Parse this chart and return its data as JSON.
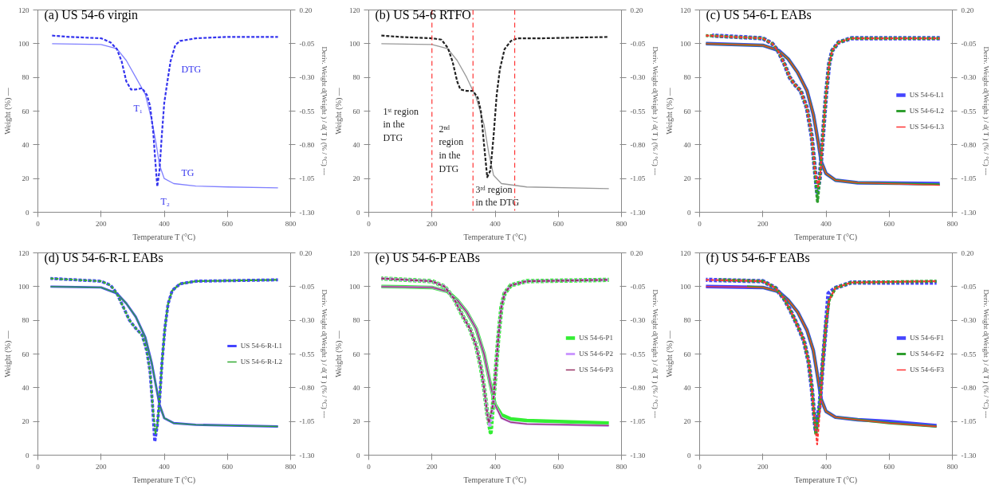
{
  "chart_data": [
    {
      "type": "line",
      "title": "(a) US 54-6 virgin",
      "xlabel": "Temperature T (°C)",
      "ylabel": "Weight (%) —",
      "y2label": "Deriv. Weight d(Weight ) / d( T ) (% / °C) ---",
      "xlim": [
        0,
        800
      ],
      "xticks": [
        0,
        200,
        400,
        600,
        800
      ],
      "ylim": [
        0,
        120
      ],
      "yticks": [
        0,
        20,
        40,
        60,
        80,
        100,
        120
      ],
      "y2lim": [
        -1.3,
        0.2
      ],
      "y2ticks": [
        {
          "value": -1.3,
          "label": "-1.30"
        },
        {
          "value": -1.05,
          "label": "-1.05"
        },
        {
          "value": -0.8,
          "label": "-0.80"
        },
        {
          "value": -0.55,
          "label": "-0.55"
        },
        {
          "value": -0.3,
          "label": "-0.30"
        },
        {
          "value": -0.05,
          "label": "-0.05"
        },
        {
          "value": 0.2,
          "label": "0.20"
        }
      ],
      "grid": false,
      "legend": false,
      "annotations": [
        "T₁",
        "T₂",
        "DTG",
        "TG"
      ],
      "series": [
        {
          "color": "#8080ff",
          "line_style": "solid",
          "x": [
            45,
            200,
            250,
            280,
            310,
            340,
            360,
            375,
            385,
            400,
            430,
            500,
            600,
            760
          ],
          "values": [
            100,
            99.5,
            97,
            90,
            80,
            70,
            55,
            40,
            28,
            20,
            17,
            15.5,
            15,
            14.5
          ]
        },
        {
          "color": "#3333ee",
          "line_style": "dotted",
          "axis": "y2",
          "x": [
            45,
            100,
            200,
            230,
            250,
            265,
            280,
            295,
            310,
            330,
            345,
            355,
            365,
            372,
            378,
            385,
            392,
            400,
            410,
            420,
            435,
            450,
            500,
            600,
            760
          ],
          "values": [
            0.01,
            0.0,
            -0.01,
            -0.04,
            -0.09,
            -0.18,
            -0.33,
            -0.39,
            -0.39,
            -0.38,
            -0.43,
            -0.51,
            -0.7,
            -0.93,
            -1.11,
            -0.99,
            -0.74,
            -0.49,
            -0.33,
            -0.18,
            -0.06,
            -0.03,
            -0.01,
            0.0,
            0.0
          ]
        }
      ]
    },
    {
      "type": "line",
      "title": "(b) US 54-6 RTFO",
      "xlabel": "Temperature T (°C)",
      "ylabel": "Weight (%) —",
      "y2label": "Deriv. Weight d(Weight ) / d( T ) (% / °C) ---",
      "xlim": [
        0,
        800
      ],
      "xticks": [
        0,
        200,
        400,
        600,
        800
      ],
      "ylim": [
        0,
        120
      ],
      "yticks": [
        0,
        20,
        40,
        60,
        80,
        100,
        120
      ],
      "y2lim": [
        -1.3,
        0.2
      ],
      "y2ticks": [
        {
          "value": -1.3,
          "label": "-1.30"
        },
        {
          "value": -1.05,
          "label": "-1.05"
        },
        {
          "value": -0.8,
          "label": "-0.80"
        },
        {
          "value": -0.55,
          "label": "-0.55"
        },
        {
          "value": -0.3,
          "label": "-0.30"
        },
        {
          "value": -0.05,
          "label": "-0.05"
        },
        {
          "value": 0.2,
          "label": "0.20"
        }
      ],
      "grid": false,
      "legend": false,
      "ref_lines": [
        {
          "axis": "x",
          "value": 200,
          "color": "#ff3333",
          "line_style": "dashed"
        },
        {
          "axis": "x",
          "value": 330,
          "color": "#ff3333",
          "line_style": "dashed"
        },
        {
          "axis": "x",
          "value": 462,
          "color": "#ff3333",
          "line_style": "dashed"
        }
      ],
      "annotations": [
        "1ˢᵗ region\nin the\nDTG",
        "2ⁿᵈ\nregion\nin the\nDTG",
        "3ʳᵈ region\nin the DTG"
      ],
      "series": [
        {
          "color": "#999999",
          "line_style": "solid",
          "x": [
            40,
            200,
            250,
            280,
            310,
            340,
            365,
            380,
            395,
            420,
            500,
            760
          ],
          "values": [
            100,
            99.5,
            97,
            90,
            80,
            68,
            52,
            35,
            22,
            17,
            15,
            14
          ]
        },
        {
          "color": "#222222",
          "line_style": "dotted",
          "axis": "y2",
          "x": [
            40,
            100,
            200,
            230,
            250,
            265,
            280,
            290,
            310,
            330,
            345,
            355,
            365,
            375,
            385,
            395,
            405,
            415,
            430,
            450,
            470,
            550,
            760
          ],
          "values": [
            0.01,
            0.0,
            -0.01,
            -0.02,
            -0.08,
            -0.18,
            -0.33,
            -0.39,
            -0.4,
            -0.4,
            -0.45,
            -0.55,
            -0.8,
            -1.04,
            -0.99,
            -0.74,
            -0.43,
            -0.24,
            -0.09,
            -0.03,
            -0.01,
            -0.01,
            0.0
          ]
        }
      ]
    },
    {
      "type": "line",
      "title": "(c) US 54-6-L EABs",
      "xlabel": "Temperature T (°C)",
      "ylabel": "Weight (%) —",
      "y2label": "Deriv. Weight d(Weight ) / d( T ) (% / °C) ---",
      "xlim": [
        0,
        800
      ],
      "xticks": [
        0,
        200,
        400,
        600,
        800
      ],
      "ylim": [
        0,
        120
      ],
      "yticks": [
        0,
        20,
        40,
        60,
        80,
        100,
        120
      ],
      "y2lim": [
        -1.3,
        0.2
      ],
      "y2ticks": [
        {
          "value": -1.3,
          "label": "-1.30"
        },
        {
          "value": -1.05,
          "label": "-1.05"
        },
        {
          "value": -0.8,
          "label": "-0.80"
        },
        {
          "value": -0.55,
          "label": "-0.55"
        },
        {
          "value": -0.3,
          "label": "-0.30"
        },
        {
          "value": -0.05,
          "label": "-0.05"
        },
        {
          "value": 0.2,
          "label": "0.20"
        }
      ],
      "grid": false,
      "legend": "right",
      "series": [
        {
          "name": "US 54-6-L1",
          "color": "#4444ff",
          "line_style": "solid",
          "x": [
            20,
            200,
            250,
            280,
            310,
            340,
            360,
            375,
            385,
            400,
            430,
            500,
            760
          ],
          "values": [
            100,
            99,
            96,
            91,
            83,
            72,
            58,
            42,
            30,
            23,
            19,
            17.5,
            17
          ]
        },
        {
          "name": "US 54-6-L2",
          "color": "#2e9e2e",
          "line_style": "solid",
          "x": [
            20,
            200,
            250,
            280,
            310,
            340,
            360,
            375,
            385,
            400,
            430,
            500,
            760
          ],
          "values": [
            100,
            99,
            96,
            91,
            83,
            72,
            58,
            42,
            30,
            23,
            19,
            17.5,
            16.5
          ]
        },
        {
          "name": "US 54-6-L3",
          "color": "#ff3333",
          "line_style": "solid",
          "x": [
            20,
            200,
            250,
            280,
            310,
            340,
            360,
            375,
            385,
            400,
            430,
            500,
            760
          ],
          "values": [
            100,
            99,
            96,
            91,
            83,
            72,
            58,
            42,
            30,
            23,
            19,
            17.5,
            16
          ]
        },
        {
          "color": "#4444ff",
          "line_style": "dotted",
          "axis": "y2",
          "x": [
            40,
            200,
            230,
            250,
            270,
            285,
            300,
            320,
            340,
            355,
            365,
            372,
            380,
            390,
            400,
            410,
            420,
            440,
            480,
            760
          ],
          "values": [
            0.01,
            -0.01,
            -0.05,
            -0.11,
            -0.21,
            -0.3,
            -0.35,
            -0.4,
            -0.53,
            -0.74,
            -0.99,
            -1.15,
            -1.05,
            -0.74,
            -0.43,
            -0.2,
            -0.1,
            -0.04,
            -0.01,
            -0.01
          ]
        },
        {
          "color": "#2e9e2e",
          "line_style": "dotted",
          "axis": "y2",
          "x": [
            20,
            200,
            230,
            250,
            270,
            285,
            300,
            320,
            340,
            355,
            365,
            373,
            380,
            390,
            400,
            410,
            420,
            440,
            480,
            760
          ],
          "values": [
            0.01,
            -0.01,
            -0.05,
            -0.11,
            -0.21,
            -0.3,
            -0.35,
            -0.4,
            -0.53,
            -0.74,
            -0.99,
            -1.22,
            -1.05,
            -0.74,
            -0.43,
            -0.2,
            -0.1,
            -0.04,
            -0.01,
            -0.01
          ]
        },
        {
          "color": "#ff3333",
          "line_style": "dotted",
          "axis": "y2",
          "x": [
            20,
            200,
            230,
            250,
            270,
            285,
            300,
            320,
            340,
            355,
            365,
            375,
            382,
            390,
            400,
            410,
            420,
            440,
            480,
            760
          ],
          "values": [
            0.01,
            -0.01,
            -0.05,
            -0.11,
            -0.21,
            -0.3,
            -0.35,
            -0.4,
            -0.53,
            -0.74,
            -0.99,
            -1.11,
            -1.02,
            -0.74,
            -0.43,
            -0.2,
            -0.1,
            -0.04,
            -0.01,
            -0.01
          ]
        }
      ]
    },
    {
      "type": "line",
      "title": "(d) US 54-6-R-L EABs",
      "xlabel": "Temperature T (°C)",
      "ylabel": "Weight (%) —",
      "y2label": "Deriv. Weight d(Weight ) / d( T ) (% / °C) ---",
      "xlim": [
        0,
        800
      ],
      "xticks": [
        0,
        200,
        400,
        600,
        800
      ],
      "ylim": [
        0,
        120
      ],
      "yticks": [
        0,
        20,
        40,
        60,
        80,
        100,
        120
      ],
      "y2lim": [
        -1.3,
        0.2
      ],
      "y2ticks": [
        {
          "value": -1.3,
          "label": "-1.30"
        },
        {
          "value": -1.05,
          "label": "-1.05"
        },
        {
          "value": -0.8,
          "label": "-0.80"
        },
        {
          "value": -0.55,
          "label": "-0.55"
        },
        {
          "value": -0.3,
          "label": "-0.30"
        },
        {
          "value": -0.05,
          "label": "-0.05"
        },
        {
          "value": 0.2,
          "label": "0.20"
        }
      ],
      "grid": false,
      "legend": "right",
      "series": [
        {
          "name": "US 54-6-R-L1",
          "color": "#4444ff",
          "line_style": "solid",
          "x": [
            40,
            200,
            250,
            280,
            310,
            340,
            360,
            375,
            385,
            400,
            430,
            500,
            760
          ],
          "values": [
            100,
            99.5,
            96,
            90,
            82,
            70,
            55,
            40,
            30,
            22,
            19,
            18,
            17
          ]
        },
        {
          "name": "US 54-6-R-L2",
          "color": "#33aa33",
          "line_style": "solid",
          "x": [
            40,
            200,
            250,
            280,
            310,
            340,
            360,
            375,
            385,
            400,
            430,
            500,
            760
          ],
          "values": [
            100,
            99.5,
            96,
            90,
            82,
            70,
            55,
            40,
            30,
            22,
            19,
            18,
            17
          ]
        },
        {
          "color": "#4444ff",
          "line_style": "dotted",
          "axis": "y2",
          "x": [
            40,
            200,
            230,
            250,
            270,
            290,
            310,
            330,
            345,
            355,
            363,
            370,
            378,
            385,
            393,
            402,
            412,
            425,
            450,
            500,
            760
          ],
          "values": [
            0.01,
            -0.01,
            -0.04,
            -0.1,
            -0.2,
            -0.3,
            -0.36,
            -0.41,
            -0.53,
            -0.68,
            -0.93,
            -1.2,
            -1.08,
            -0.9,
            -0.61,
            -0.36,
            -0.18,
            -0.08,
            -0.03,
            -0.01,
            0.0
          ]
        },
        {
          "color": "#33aa33",
          "line_style": "dotted",
          "axis": "y2",
          "x": [
            40,
            200,
            230,
            250,
            270,
            290,
            310,
            330,
            345,
            355,
            363,
            372,
            378,
            385,
            393,
            402,
            412,
            425,
            450,
            500,
            760
          ],
          "values": [
            0.01,
            -0.01,
            -0.04,
            -0.1,
            -0.2,
            -0.3,
            -0.36,
            -0.41,
            -0.53,
            -0.68,
            -0.93,
            -1.14,
            -1.08,
            -0.9,
            -0.61,
            -0.36,
            -0.18,
            -0.08,
            -0.03,
            -0.01,
            0.0
          ]
        }
      ]
    },
    {
      "type": "line",
      "title": "(e) US 54-6-P EABs",
      "xlabel": "Temperature T (°C)",
      "ylabel": "Weight (%) —",
      "y2label": "Deriv. Weight d(Weight ) / d( T ) (% / °C) ---",
      "xlim": [
        0,
        800
      ],
      "xticks": [
        0,
        200,
        400,
        600,
        800
      ],
      "ylim": [
        0,
        120
      ],
      "yticks": [
        0,
        20,
        40,
        60,
        80,
        100,
        120
      ],
      "y2lim": [
        -1.3,
        0.2
      ],
      "y2ticks": [
        {
          "value": -1.3,
          "label": "-1.30"
        },
        {
          "value": -1.05,
          "label": "-1.05"
        },
        {
          "value": -0.8,
          "label": "-0.80"
        },
        {
          "value": -0.55,
          "label": "-0.55"
        },
        {
          "value": -0.3,
          "label": "-0.30"
        },
        {
          "value": -0.05,
          "label": "-0.05"
        },
        {
          "value": 0.2,
          "label": "0.20"
        }
      ],
      "grid": false,
      "legend": "right",
      "series": [
        {
          "name": "US 54-6-P1",
          "color": "#33ee33",
          "line_style": "solid",
          "x": [
            40,
            200,
            250,
            280,
            310,
            340,
            365,
            385,
            400,
            420,
            450,
            500,
            760
          ],
          "values": [
            100,
            99.5,
            97,
            92,
            85,
            75,
            60,
            42,
            30,
            24,
            21.5,
            20.5,
            19
          ]
        },
        {
          "name": "US 54-6-P2",
          "color": "#cc99ff",
          "line_style": "solid",
          "x": [
            40,
            200,
            250,
            280,
            310,
            340,
            365,
            385,
            400,
            420,
            450,
            500,
            760
          ],
          "values": [
            100,
            99.5,
            97,
            92,
            85,
            75,
            60,
            42,
            30,
            22,
            19.5,
            18.5,
            17.5
          ]
        },
        {
          "name": "US 54-6-P3",
          "color": "#993366",
          "line_style": "solid",
          "x": [
            40,
            200,
            250,
            280,
            310,
            340,
            365,
            385,
            400,
            420,
            450,
            500,
            760
          ],
          "values": [
            100,
            99.5,
            97,
            92,
            85,
            75,
            60,
            42,
            30,
            22,
            19.5,
            18.5,
            17.5
          ]
        },
        {
          "color": "#33ee33",
          "line_style": "dotted",
          "axis": "y2",
          "x": [
            40,
            200,
            240,
            270,
            300,
            320,
            340,
            355,
            365,
            375,
            386,
            393,
            400,
            410,
            420,
            430,
            450,
            500,
            760
          ],
          "values": [
            0.01,
            -0.01,
            -0.05,
            -0.14,
            -0.28,
            -0.36,
            -0.49,
            -0.65,
            -0.8,
            -0.99,
            -1.13,
            -0.93,
            -0.74,
            -0.43,
            -0.2,
            -0.1,
            -0.04,
            -0.01,
            0.0
          ]
        },
        {
          "color": "#cc99ff",
          "line_style": "dotted",
          "axis": "y2",
          "x": [
            40,
            200,
            240,
            270,
            300,
            320,
            340,
            355,
            365,
            375,
            383,
            393,
            400,
            410,
            420,
            430,
            450,
            500,
            760
          ],
          "values": [
            0.01,
            -0.01,
            -0.05,
            -0.14,
            -0.28,
            -0.36,
            -0.49,
            -0.65,
            -0.8,
            -0.99,
            -1.09,
            -0.93,
            -0.74,
            -0.43,
            -0.2,
            -0.1,
            -0.04,
            -0.01,
            0.0
          ]
        },
        {
          "color": "#993366",
          "line_style": "dotted",
          "axis": "y2",
          "x": [
            40,
            200,
            240,
            270,
            300,
            320,
            340,
            355,
            365,
            375,
            380,
            393,
            400,
            410,
            420,
            430,
            450,
            500,
            760
          ],
          "values": [
            0.01,
            -0.01,
            -0.05,
            -0.14,
            -0.28,
            -0.36,
            -0.49,
            -0.65,
            -0.8,
            -0.99,
            -1.06,
            -0.93,
            -0.74,
            -0.43,
            -0.2,
            -0.1,
            -0.04,
            -0.01,
            0.0
          ]
        }
      ]
    },
    {
      "type": "line",
      "title": "(f) US 54-6-F EABs",
      "xlabel": "Temperature T (°C)",
      "ylabel": "Weight (%) —",
      "y2label": "Deriv. Weight d(Weight ) / d( T ) (% / °C) ---",
      "xlim": [
        0,
        800
      ],
      "xticks": [
        0,
        200,
        400,
        600,
        800
      ],
      "ylim": [
        0,
        120
      ],
      "yticks": [
        0,
        20,
        40,
        60,
        80,
        100,
        120
      ],
      "y2lim": [
        -1.3,
        0.2
      ],
      "y2ticks": [
        {
          "value": -1.3,
          "label": "-1.30"
        },
        {
          "value": -1.05,
          "label": "-1.05"
        },
        {
          "value": -0.8,
          "label": "-0.80"
        },
        {
          "value": -0.55,
          "label": "-0.55"
        },
        {
          "value": -0.3,
          "label": "-0.30"
        },
        {
          "value": -0.05,
          "label": "-0.05"
        },
        {
          "value": 0.2,
          "label": "0.20"
        }
      ],
      "grid": false,
      "legend": "right",
      "series": [
        {
          "name": "US 54-6-F1",
          "color": "#4444ff",
          "line_style": "solid",
          "x": [
            20,
            200,
            250,
            280,
            310,
            340,
            360,
            375,
            385,
            400,
            430,
            500,
            600,
            750
          ],
          "values": [
            100,
            99.5,
            97,
            92,
            85,
            74,
            62,
            45,
            33,
            26,
            22.5,
            21,
            20,
            17.5
          ]
        },
        {
          "name": "US 54-6-F2",
          "color": "#2e9e2e",
          "line_style": "solid",
          "x": [
            150,
            200,
            250,
            280,
            310,
            340,
            360,
            375,
            385,
            400,
            430,
            500,
            600,
            750
          ],
          "values": [
            100,
            99.5,
            97,
            92,
            85,
            74,
            62,
            45,
            33,
            26,
            22.5,
            21,
            19,
            17
          ]
        },
        {
          "name": "US 54-6-F3",
          "color": "#ff3333",
          "line_style": "solid",
          "x": [
            20,
            200,
            250,
            280,
            310,
            340,
            360,
            375,
            385,
            400,
            430,
            500,
            600,
            750
          ],
          "values": [
            100,
            99.5,
            97,
            92,
            85,
            74,
            62,
            45,
            33,
            26,
            22.5,
            21,
            19,
            17
          ]
        },
        {
          "color": "#4444ff",
          "line_style": "dotted",
          "axis": "y2",
          "x": [
            20,
            200,
            240,
            270,
            290,
            310,
            330,
            345,
            355,
            362,
            367,
            380,
            390,
            400,
            408,
            430,
            480,
            750
          ],
          "values": [
            0.0,
            -0.01,
            -0.06,
            -0.15,
            -0.24,
            -0.34,
            -0.45,
            -0.61,
            -0.8,
            -0.99,
            -1.11,
            -0.93,
            -0.61,
            -0.33,
            -0.1,
            -0.06,
            -0.02,
            -0.02
          ]
        },
        {
          "color": "#2e9e2e",
          "line_style": "dotted",
          "axis": "y2",
          "x": [
            60,
            200,
            240,
            270,
            290,
            310,
            330,
            345,
            355,
            362,
            368,
            380,
            390,
            400,
            410,
            430,
            480,
            750
          ],
          "values": [
            0.0,
            -0.01,
            -0.06,
            -0.15,
            -0.24,
            -0.34,
            -0.45,
            -0.61,
            -0.8,
            -0.99,
            -1.15,
            -0.93,
            -0.61,
            -0.33,
            -0.15,
            -0.06,
            -0.02,
            -0.01
          ]
        },
        {
          "color": "#ff3333",
          "line_style": "dotted",
          "axis": "y2",
          "x": [
            20,
            200,
            240,
            270,
            290,
            310,
            330,
            345,
            355,
            362,
            372,
            382,
            390,
            400,
            410,
            430,
            480,
            750
          ],
          "values": [
            0.0,
            -0.01,
            -0.06,
            -0.15,
            -0.24,
            -0.34,
            -0.45,
            -0.61,
            -0.8,
            -0.99,
            -1.22,
            -0.93,
            -0.61,
            -0.33,
            -0.15,
            -0.06,
            -0.02,
            -0.01
          ]
        }
      ]
    }
  ]
}
